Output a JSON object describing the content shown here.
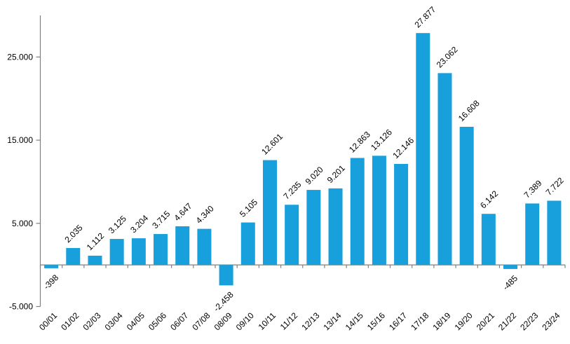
{
  "chart_data": {
    "type": "bar",
    "title": "",
    "xlabel": "",
    "ylabel": "",
    "categories": [
      "00/01",
      "01/02",
      "02/03",
      "03/04",
      "04/05",
      "05/06",
      "06/07",
      "07/08",
      "08/09",
      "09/10",
      "10/11",
      "11/12",
      "12/13",
      "13/14",
      "14/15",
      "15/16",
      "16/17",
      "17/18",
      "18/19",
      "19/20",
      "20/21",
      "21/22",
      "22/23",
      "23/24"
    ],
    "values": [
      -398,
      2035,
      1112,
      3125,
      3204,
      3715,
      4647,
      4340,
      -2458,
      5105,
      12601,
      7235,
      9020,
      9201,
      12863,
      13126,
      12146,
      27877,
      23062,
      16608,
      6142,
      -485,
      7389,
      7722
    ],
    "value_labels": [
      "-398",
      "2.035",
      "1.112",
      "3.125",
      "3.204",
      "3.715",
      "4.647",
      "4.340",
      "-2.458",
      "5.105",
      "12.601",
      "7.235",
      "9.020",
      "9.201",
      "12.863",
      "13.126",
      "12.146",
      "27.877",
      "23.062",
      "16.608",
      "6.142",
      "-485",
      "7.389",
      "7.722"
    ],
    "y_ticks": [
      {
        "value": 25000,
        "label": "25.000"
      },
      {
        "value": 15000,
        "label": "15.000"
      },
      {
        "value": 5000,
        "label": "5.000"
      },
      {
        "value": -5000,
        "label": "-5.000"
      }
    ],
    "ylim": [
      -5000,
      30000
    ],
    "grid": false,
    "legend": null,
    "label_rotation_deg": 45,
    "colors": {
      "bar": "#18A0DC",
      "axis": "#808080",
      "label": "#000000",
      "background": "#FFFFFF"
    }
  }
}
